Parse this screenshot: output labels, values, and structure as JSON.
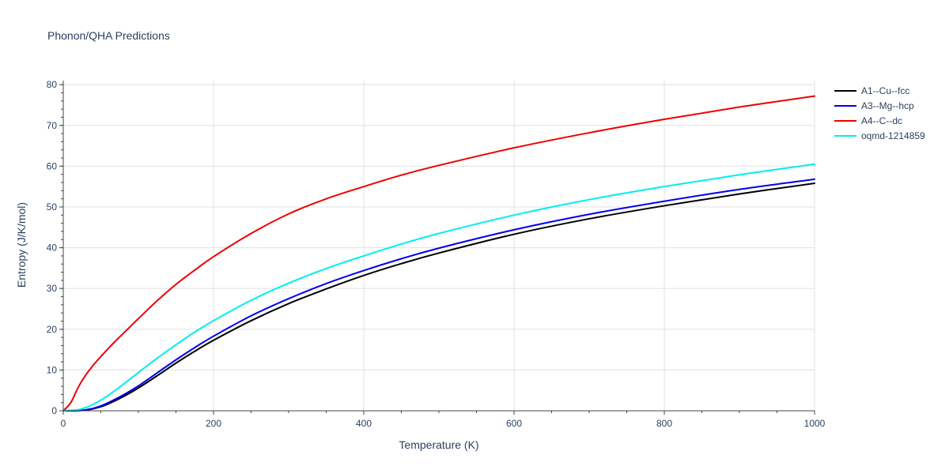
{
  "chart_data": {
    "type": "line",
    "title": "Phonon/QHA Predictions",
    "xlabel": "Temperature (K)",
    "ylabel": "Entropy (J/K/mol)",
    "xlim": [
      0,
      1000
    ],
    "ylim": [
      0,
      81
    ],
    "xticks": [
      0,
      200,
      400,
      600,
      800,
      1000
    ],
    "yticks": [
      0,
      10,
      20,
      30,
      40,
      50,
      60,
      70,
      80
    ],
    "grid": true,
    "legend_position": "right",
    "series": [
      {
        "name": "A1--Cu--fcc",
        "color": "#000000",
        "x": [
          0,
          20,
          30,
          40,
          50,
          60,
          80,
          100,
          125,
          150,
          175,
          200,
          250,
          300,
          350,
          400,
          450,
          500,
          600,
          700,
          800,
          900,
          1000
        ],
        "y": [
          0,
          0.05,
          0.2,
          0.5,
          1.0,
          1.7,
          3.5,
          5.6,
          8.6,
          11.7,
          14.6,
          17.3,
          22.1,
          26.3,
          29.9,
          33.2,
          36.1,
          38.7,
          43.3,
          47.1,
          50.3,
          53.2,
          55.8
        ]
      },
      {
        "name": "A3--Mg--hcp",
        "color": "#0000ee",
        "x": [
          0,
          20,
          30,
          40,
          50,
          60,
          80,
          100,
          125,
          150,
          175,
          200,
          250,
          300,
          350,
          400,
          450,
          500,
          600,
          700,
          800,
          900,
          1000
        ],
        "y": [
          0,
          0.05,
          0.25,
          0.6,
          1.2,
          2.0,
          3.9,
          6.1,
          9.3,
          12.5,
          15.5,
          18.3,
          23.3,
          27.5,
          31.2,
          34.4,
          37.3,
          39.9,
          44.4,
          48.2,
          51.4,
          54.3,
          56.8
        ]
      },
      {
        "name": "A4--C--dc",
        "color": "#ee0000",
        "x": [
          0,
          10,
          20,
          30,
          40,
          50,
          60,
          70,
          80,
          100,
          125,
          150,
          175,
          200,
          250,
          300,
          350,
          400,
          450,
          500,
          600,
          700,
          800,
          900,
          1000
        ],
        "y": [
          0,
          2.0,
          5.8,
          8.8,
          11.2,
          13.3,
          15.3,
          17.2,
          19.0,
          22.6,
          27.0,
          31.0,
          34.5,
          37.8,
          43.5,
          48.3,
          52.0,
          55.0,
          57.8,
          60.2,
          64.5,
          68.2,
          71.5,
          74.5,
          77.2
        ]
      },
      {
        "name": "oqmd-1214859",
        "color": "#00eeee",
        "x": [
          0,
          20,
          30,
          40,
          50,
          60,
          80,
          100,
          125,
          150,
          175,
          200,
          250,
          300,
          350,
          400,
          450,
          500,
          600,
          700,
          800,
          900,
          1000
        ],
        "y": [
          0,
          0.3,
          0.8,
          1.6,
          2.6,
          3.8,
          6.5,
          9.4,
          12.9,
          16.2,
          19.3,
          22.1,
          27.1,
          31.3,
          34.9,
          38.0,
          40.9,
          43.5,
          48.0,
          51.8,
          55.0,
          57.9,
          60.5
        ]
      }
    ]
  }
}
